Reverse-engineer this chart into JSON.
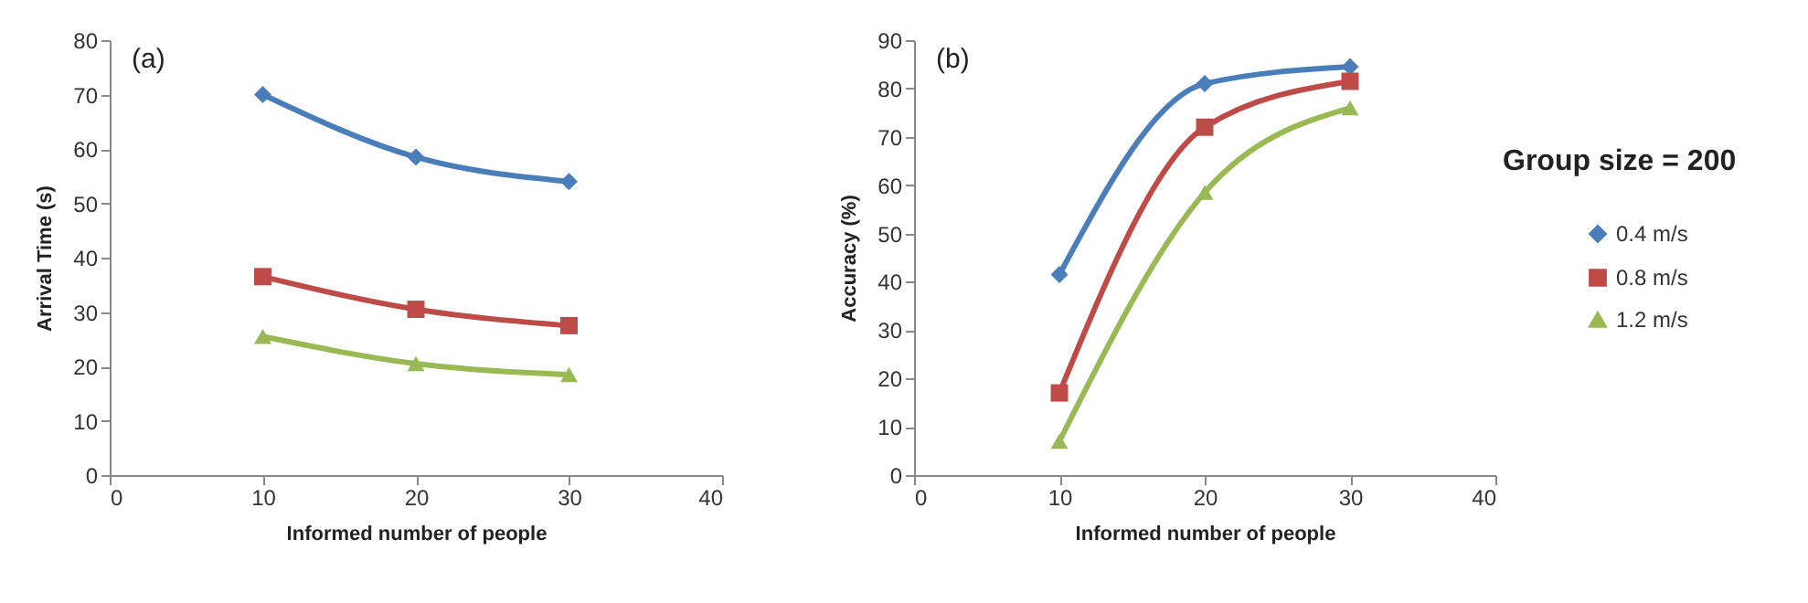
{
  "chart_data": [
    {
      "type": "line",
      "xlabel": "Informed number of people",
      "ylabel": "Arrival Time (s)",
      "annotations": [
        "(a)"
      ],
      "x": [
        10,
        20,
        30
      ],
      "xlim": [
        0,
        40
      ],
      "xticks": [
        0,
        10,
        20,
        30,
        40
      ],
      "ylim": [
        0,
        80
      ],
      "yticks": [
        0,
        10,
        20,
        30,
        40,
        50,
        60,
        70,
        80
      ],
      "grid": false,
      "legend": false,
      "line_style": "solid",
      "series": [
        {
          "color": "#4a7ebb",
          "marker": "diamond",
          "values": [
            70,
            58.5,
            54
          ]
        },
        {
          "color": "#be4b48",
          "marker": "square",
          "values": [
            36.5,
            30.5,
            27.5
          ]
        },
        {
          "color": "#98b954",
          "marker": "triangle",
          "values": [
            25.5,
            20.5,
            18.5
          ]
        }
      ]
    },
    {
      "type": "line",
      "xlabel": "Informed number of people",
      "ylabel": "Accuracy  (%)",
      "annotations": [
        "(b)",
        "Group size = 200"
      ],
      "x": [
        10,
        20,
        30
      ],
      "xlim": [
        0,
        40
      ],
      "xticks": [
        0,
        10,
        20,
        30,
        40
      ],
      "ylim": [
        0,
        90
      ],
      "yticks": [
        0,
        10,
        20,
        30,
        40,
        50,
        60,
        70,
        80,
        90
      ],
      "grid": false,
      "legend": "right",
      "line_style": "solid",
      "series": [
        {
          "name": "0.4 m/s",
          "color": "#4a7ebb",
          "marker": "diamond",
          "values": [
            41.5,
            81,
            84.5
          ]
        },
        {
          "name": "0.8 m/s",
          "color": "#be4b48",
          "marker": "square",
          "values": [
            17,
            72,
            81.5
          ]
        },
        {
          "name": "1.2 m/s",
          "color": "#98b954",
          "marker": "triangle",
          "values": [
            7,
            58.5,
            76
          ]
        }
      ]
    }
  ]
}
